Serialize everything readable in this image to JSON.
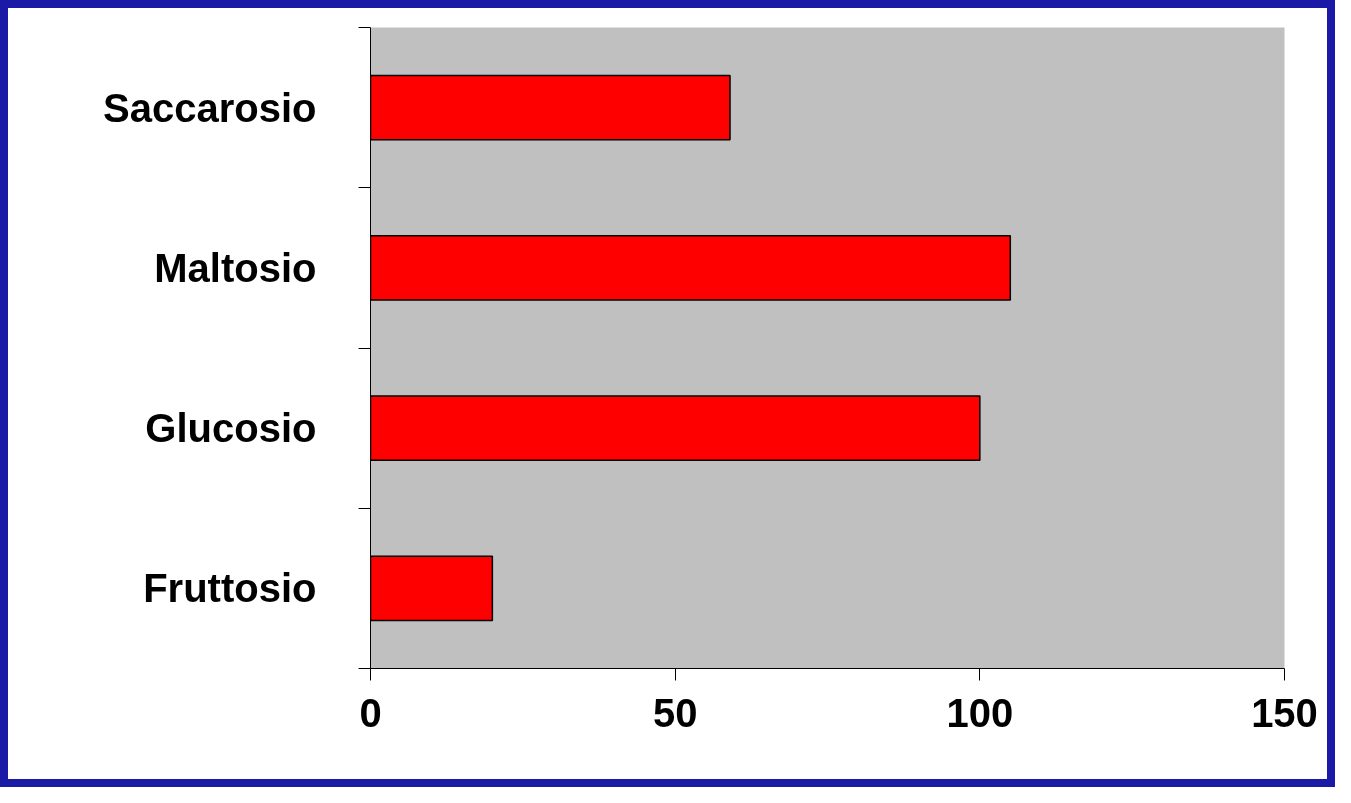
{
  "chart_data": {
    "type": "bar",
    "orientation": "horizontal",
    "categories": [
      "Saccarosio",
      "Maltosio",
      "Glucosio",
      "Fruttosio"
    ],
    "values": [
      59,
      105,
      100,
      20
    ],
    "color": "#ff0000",
    "xlim": [
      0,
      150
    ],
    "xticks": [
      0,
      50,
      100,
      150
    ]
  }
}
